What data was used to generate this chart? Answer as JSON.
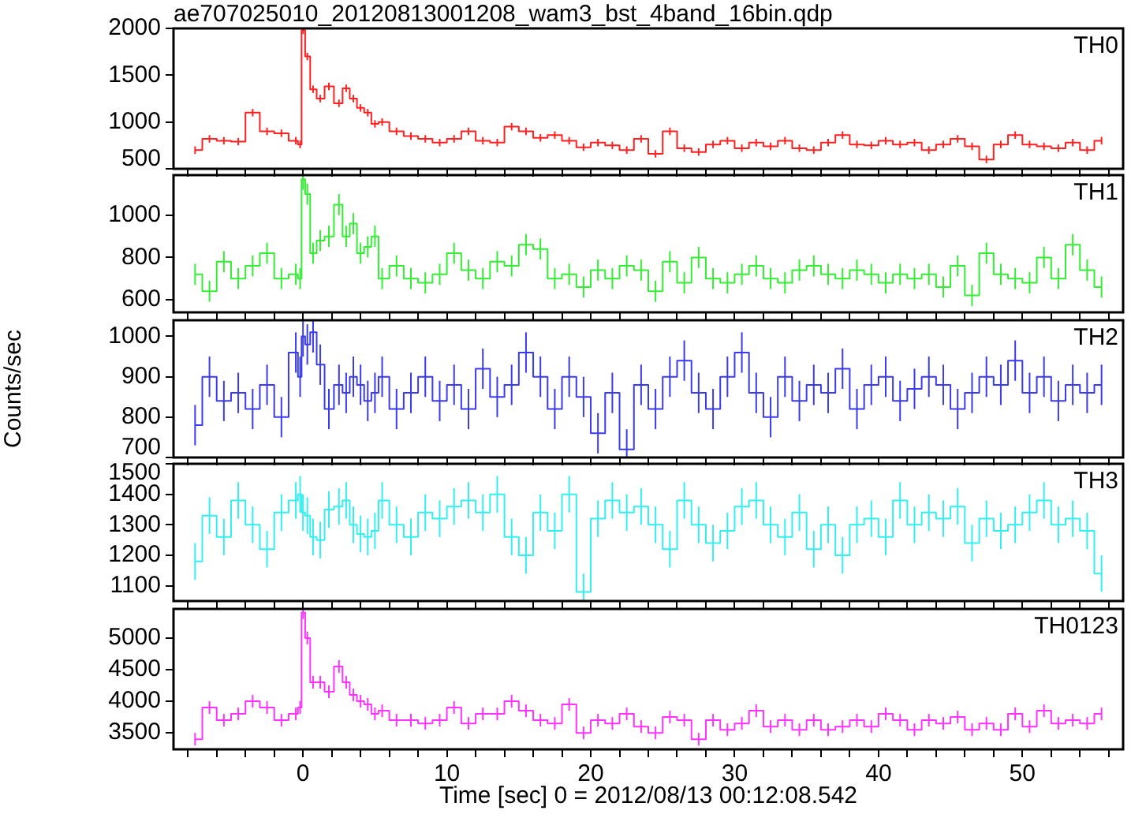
{
  "chart_data": [
    {
      "type": "step",
      "title": "ae707025010_20120813001208_wam3_bst_4band_16bin.qdp",
      "x": [
        -7.5,
        -6.5,
        -5.5,
        -4.5,
        -3.5,
        -2.5,
        -1.5,
        -0.5,
        -0.2,
        0,
        0.3,
        0.7,
        1.2,
        1.8,
        2.5,
        3,
        3.5,
        4,
        4.5,
        5,
        5.5,
        6.5,
        7.5,
        8.5,
        9.5,
        10.5,
        11.5,
        12.5,
        13.5,
        14.5,
        15.5,
        16.5,
        17.5,
        18.5,
        19.5,
        20.5,
        21.5,
        22.5,
        23.5,
        24.5,
        25.5,
        26.5,
        27.5,
        28.5,
        29.5,
        30.5,
        31.5,
        32.5,
        33.5,
        34.5,
        35.5,
        36.5,
        37.5,
        38.5,
        39.5,
        40.5,
        41.5,
        42.5,
        43.5,
        44.5,
        45.5,
        46.5,
        47.5,
        48.5,
        49.5,
        50.5,
        51.5,
        52.5,
        53.5,
        54.5,
        55.5
      ],
      "xlim": [
        -9,
        57
      ],
      "xticks": [
        {
          "value": -8,
          "label": null
        },
        {
          "value": -6,
          "label": null
        },
        {
          "value": -4,
          "label": null
        },
        {
          "value": -2,
          "label": null
        },
        0,
        {
          "value": 2,
          "label": null
        },
        {
          "value": 4,
          "label": null
        },
        {
          "value": 6,
          "label": null
        },
        {
          "value": 8,
          "label": null
        },
        10,
        {
          "value": 12,
          "label": null
        },
        {
          "value": 14,
          "label": null
        },
        {
          "value": 16,
          "label": null
        },
        {
          "value": 18,
          "label": null
        },
        20,
        {
          "value": 22,
          "label": null
        },
        {
          "value": 24,
          "label": null
        },
        {
          "value": 26,
          "label": null
        },
        {
          "value": 28,
          "label": null
        },
        30,
        {
          "value": 32,
          "label": null
        },
        {
          "value": 34,
          "label": null
        },
        {
          "value": 36,
          "label": null
        },
        {
          "value": 38,
          "label": null
        },
        40,
        {
          "value": 42,
          "label": null
        },
        {
          "value": 44,
          "label": null
        },
        {
          "value": 46,
          "label": null
        },
        {
          "value": 48,
          "label": null
        },
        50,
        {
          "value": 52,
          "label": null
        },
        {
          "value": 54,
          "label": null
        },
        {
          "value": 56,
          "label": null
        }
      ],
      "ylim": [
        500,
        2000
      ],
      "yticks": [
        500,
        1000,
        1500,
        2000
      ],
      "tick_labels": "y",
      "series": [
        {
          "name": "TH0",
          "color": "#ff2020",
          "values": [
            700,
            820,
            800,
            790,
            1100,
            900,
            880,
            800,
            760,
            1980,
            1700,
            1350,
            1250,
            1380,
            1200,
            1360,
            1250,
            1150,
            1100,
            980,
            1000,
            900,
            850,
            820,
            780,
            820,
            900,
            800,
            780,
            950,
            900,
            830,
            860,
            800,
            730,
            780,
            750,
            700,
            820,
            660,
            900,
            720,
            680,
            760,
            800,
            720,
            780,
            740,
            800,
            720,
            700,
            780,
            860,
            760,
            750,
            800,
            760,
            780,
            700,
            760,
            820,
            740,
            600,
            760,
            860,
            760,
            740,
            720,
            780,
            700,
            800
          ],
          "errors": [
            40,
            40,
            40,
            40,
            40,
            40,
            40,
            40,
            40,
            40,
            40,
            40,
            40,
            40,
            40,
            40,
            40,
            40,
            40,
            40,
            40,
            40,
            40,
            40,
            40,
            40,
            40,
            40,
            40,
            40,
            40,
            40,
            40,
            40,
            40,
            40,
            40,
            40,
            40,
            40,
            40,
            40,
            40,
            40,
            40,
            40,
            40,
            40,
            40,
            40,
            40,
            40,
            40,
            40,
            40,
            40,
            40,
            40,
            40,
            40,
            40,
            40,
            40,
            40,
            40,
            40,
            40,
            40,
            40,
            40,
            40
          ]
        }
      ]
    },
    {
      "type": "step",
      "x": [
        -7.5,
        -6.5,
        -5.5,
        -4.5,
        -3.5,
        -2.5,
        -1.5,
        -0.5,
        -0.2,
        0,
        0.3,
        0.7,
        1.2,
        1.8,
        2.5,
        3,
        3.5,
        4,
        4.5,
        5,
        5.5,
        6.5,
        7.5,
        8.5,
        9.5,
        10.5,
        11.5,
        12.5,
        13.5,
        14.5,
        15.5,
        16.5,
        17.5,
        18.5,
        19.5,
        20.5,
        21.5,
        22.5,
        23.5,
        24.5,
        25.5,
        26.5,
        27.5,
        28.5,
        29.5,
        30.5,
        31.5,
        32.5,
        33.5,
        34.5,
        35.5,
        36.5,
        37.5,
        38.5,
        39.5,
        40.5,
        41.5,
        42.5,
        43.5,
        44.5,
        45.5,
        46.5,
        47.5,
        48.5,
        49.5,
        50.5,
        51.5,
        52.5,
        53.5,
        54.5,
        55.5
      ],
      "xlim": [
        -9,
        57
      ],
      "xticks": [
        {
          "value": -8,
          "label": null
        },
        {
          "value": -6,
          "label": null
        },
        {
          "value": -4,
          "label": null
        },
        {
          "value": -2,
          "label": null
        },
        0,
        {
          "value": 2,
          "label": null
        },
        {
          "value": 4,
          "label": null
        },
        {
          "value": 6,
          "label": null
        },
        {
          "value": 8,
          "label": null
        },
        10,
        {
          "value": 12,
          "label": null
        },
        {
          "value": 14,
          "label": null
        },
        {
          "value": 16,
          "label": null
        },
        {
          "value": 18,
          "label": null
        },
        20,
        {
          "value": 22,
          "label": null
        },
        {
          "value": 24,
          "label": null
        },
        {
          "value": 26,
          "label": null
        },
        {
          "value": 28,
          "label": null
        },
        30,
        {
          "value": 32,
          "label": null
        },
        {
          "value": 34,
          "label": null
        },
        {
          "value": 36,
          "label": null
        },
        {
          "value": 38,
          "label": null
        },
        40,
        {
          "value": 42,
          "label": null
        },
        {
          "value": 44,
          "label": null
        },
        {
          "value": 46,
          "label": null
        },
        {
          "value": 48,
          "label": null
        },
        50,
        {
          "value": 52,
          "label": null
        },
        {
          "value": 54,
          "label": null
        },
        {
          "value": 56,
          "label": null
        }
      ],
      "ylim": [
        540,
        1190
      ],
      "yticks": [
        600,
        800,
        1000
      ],
      "tick_labels": "y",
      "series": [
        {
          "name": "TH1",
          "color": "#33ee33",
          "values": [
            720,
            640,
            780,
            700,
            760,
            820,
            700,
            720,
            700,
            1170,
            1100,
            820,
            880,
            900,
            1050,
            900,
            960,
            820,
            850,
            900,
            700,
            760,
            700,
            680,
            720,
            820,
            740,
            700,
            780,
            760,
            860,
            840,
            700,
            720,
            660,
            740,
            700,
            760,
            740,
            640,
            780,
            680,
            800,
            700,
            680,
            720,
            760,
            700,
            680,
            740,
            760,
            720,
            700,
            740,
            720,
            680,
            720,
            700,
            720,
            660,
            760,
            620,
            820,
            720,
            700,
            680,
            800,
            700,
            860,
            740,
            660
          ],
          "errors": [
            50,
            50,
            50,
            50,
            50,
            50,
            50,
            50,
            50,
            50,
            50,
            50,
            50,
            50,
            50,
            50,
            50,
            50,
            50,
            50,
            50,
            50,
            50,
            50,
            50,
            50,
            50,
            50,
            50,
            50,
            50,
            50,
            50,
            50,
            50,
            50,
            50,
            50,
            50,
            50,
            50,
            50,
            50,
            50,
            50,
            50,
            50,
            50,
            50,
            50,
            50,
            50,
            50,
            50,
            50,
            50,
            50,
            50,
            50,
            50,
            50,
            50,
            50,
            50,
            50,
            50,
            50,
            50,
            50,
            50,
            50
          ]
        }
      ]
    },
    {
      "type": "step",
      "ylabel": "Counts/sec",
      "x": [
        -7.5,
        -6.5,
        -5.5,
        -4.5,
        -3.5,
        -2.5,
        -1.5,
        -0.5,
        -0.2,
        0,
        0.3,
        0.7,
        1.2,
        1.8,
        2.5,
        3,
        3.5,
        4,
        4.5,
        5,
        5.5,
        6.5,
        7.5,
        8.5,
        9.5,
        10.5,
        11.5,
        12.5,
        13.5,
        14.5,
        15.5,
        16.5,
        17.5,
        18.5,
        19.5,
        20.5,
        21.5,
        22.5,
        23.5,
        24.5,
        25.5,
        26.5,
        27.5,
        28.5,
        29.5,
        30.5,
        31.5,
        32.5,
        33.5,
        34.5,
        35.5,
        36.5,
        37.5,
        38.5,
        39.5,
        40.5,
        41.5,
        42.5,
        43.5,
        44.5,
        45.5,
        46.5,
        47.5,
        48.5,
        49.5,
        50.5,
        51.5,
        52.5,
        53.5,
        54.5,
        55.5
      ],
      "xlim": [
        -9,
        57
      ],
      "xticks": [
        {
          "value": -8,
          "label": null
        },
        {
          "value": -6,
          "label": null
        },
        {
          "value": -4,
          "label": null
        },
        {
          "value": -2,
          "label": null
        },
        0,
        {
          "value": 2,
          "label": null
        },
        {
          "value": 4,
          "label": null
        },
        {
          "value": 6,
          "label": null
        },
        {
          "value": 8,
          "label": null
        },
        10,
        {
          "value": 12,
          "label": null
        },
        {
          "value": 14,
          "label": null
        },
        {
          "value": 16,
          "label": null
        },
        {
          "value": 18,
          "label": null
        },
        20,
        {
          "value": 22,
          "label": null
        },
        {
          "value": 24,
          "label": null
        },
        {
          "value": 26,
          "label": null
        },
        {
          "value": 28,
          "label": null
        },
        30,
        {
          "value": 32,
          "label": null
        },
        {
          "value": 34,
          "label": null
        },
        {
          "value": 36,
          "label": null
        },
        {
          "value": 38,
          "label": null
        },
        40,
        {
          "value": 42,
          "label": null
        },
        {
          "value": 44,
          "label": null
        },
        {
          "value": 46,
          "label": null
        },
        {
          "value": 48,
          "label": null
        },
        50,
        {
          "value": 52,
          "label": null
        },
        {
          "value": 54,
          "label": null
        },
        {
          "value": 56,
          "label": null
        }
      ],
      "ylim": [
        700,
        1040
      ],
      "yticks": [
        700,
        800,
        900,
        1000
      ],
      "tick_labels": "y",
      "series": [
        {
          "name": "TH2",
          "color": "#3a3aee",
          "values": [
            780,
            900,
            840,
            860,
            820,
            880,
            800,
            960,
            900,
            1000,
            980,
            1010,
            930,
            820,
            880,
            860,
            900,
            880,
            840,
            860,
            900,
            820,
            860,
            900,
            840,
            880,
            820,
            920,
            850,
            880,
            960,
            900,
            820,
            900,
            850,
            760,
            860,
            720,
            880,
            820,
            900,
            940,
            860,
            820,
            900,
            960,
            860,
            800,
            900,
            840,
            880,
            860,
            920,
            820,
            880,
            900,
            840,
            870,
            900,
            880,
            820,
            860,
            900,
            880,
            940,
            860,
            900,
            840,
            880,
            860,
            880
          ],
          "errors": [
            50,
            50,
            50,
            50,
            50,
            50,
            50,
            50,
            50,
            50,
            50,
            50,
            50,
            50,
            50,
            50,
            50,
            50,
            50,
            50,
            50,
            50,
            50,
            50,
            50,
            50,
            50,
            50,
            50,
            50,
            50,
            50,
            50,
            50,
            50,
            50,
            50,
            50,
            50,
            50,
            50,
            50,
            50,
            50,
            50,
            50,
            50,
            50,
            50,
            50,
            50,
            50,
            50,
            50,
            50,
            50,
            50,
            50,
            50,
            50,
            50,
            50,
            50,
            50,
            50,
            50,
            50,
            50,
            50,
            50,
            50
          ]
        }
      ]
    },
    {
      "type": "step",
      "x": [
        -7.5,
        -6.5,
        -5.5,
        -4.5,
        -3.5,
        -2.5,
        -1.5,
        -0.5,
        -0.2,
        0,
        0.3,
        0.7,
        1.2,
        1.8,
        2.5,
        3,
        3.5,
        4,
        4.5,
        5,
        5.5,
        6.5,
        7.5,
        8.5,
        9.5,
        10.5,
        11.5,
        12.5,
        13.5,
        14.5,
        15.5,
        16.5,
        17.5,
        18.5,
        19.5,
        20.5,
        21.5,
        22.5,
        23.5,
        24.5,
        25.5,
        26.5,
        27.5,
        28.5,
        29.5,
        30.5,
        31.5,
        32.5,
        33.5,
        34.5,
        35.5,
        36.5,
        37.5,
        38.5,
        39.5,
        40.5,
        41.5,
        42.5,
        43.5,
        44.5,
        45.5,
        46.5,
        47.5,
        48.5,
        49.5,
        50.5,
        51.5,
        52.5,
        53.5,
        54.5,
        55.5
      ],
      "xlim": [
        -9,
        57
      ],
      "xticks": [
        {
          "value": -8,
          "label": null
        },
        {
          "value": -6,
          "label": null
        },
        {
          "value": -4,
          "label": null
        },
        {
          "value": -2,
          "label": null
        },
        0,
        {
          "value": 2,
          "label": null
        },
        {
          "value": 4,
          "label": null
        },
        {
          "value": 6,
          "label": null
        },
        {
          "value": 8,
          "label": null
        },
        10,
        {
          "value": 12,
          "label": null
        },
        {
          "value": 14,
          "label": null
        },
        {
          "value": 16,
          "label": null
        },
        {
          "value": 18,
          "label": null
        },
        20,
        {
          "value": 22,
          "label": null
        },
        {
          "value": 24,
          "label": null
        },
        {
          "value": 26,
          "label": null
        },
        {
          "value": 28,
          "label": null
        },
        30,
        {
          "value": 32,
          "label": null
        },
        {
          "value": 34,
          "label": null
        },
        {
          "value": 36,
          "label": null
        },
        {
          "value": 38,
          "label": null
        },
        40,
        {
          "value": 42,
          "label": null
        },
        {
          "value": 44,
          "label": null
        },
        {
          "value": 46,
          "label": null
        },
        {
          "value": 48,
          "label": null
        },
        50,
        {
          "value": 52,
          "label": null
        },
        {
          "value": 54,
          "label": null
        },
        {
          "value": 56,
          "label": null
        }
      ],
      "ylim": [
        1050,
        1500
      ],
      "yticks": [
        1100,
        1200,
        1300,
        1400,
        1500
      ],
      "tick_labels": "y",
      "series": [
        {
          "name": "TH3",
          "color": "#33f0f0",
          "values": [
            1180,
            1330,
            1260,
            1380,
            1300,
            1220,
            1340,
            1380,
            1400,
            1340,
            1330,
            1260,
            1250,
            1350,
            1360,
            1380,
            1300,
            1270,
            1260,
            1280,
            1380,
            1300,
            1260,
            1340,
            1320,
            1360,
            1380,
            1340,
            1400,
            1260,
            1200,
            1340,
            1280,
            1400,
            1080,
            1320,
            1380,
            1340,
            1360,
            1300,
            1220,
            1380,
            1300,
            1240,
            1280,
            1360,
            1380,
            1300,
            1260,
            1340,
            1220,
            1300,
            1200,
            1300,
            1320,
            1260,
            1380,
            1300,
            1340,
            1320,
            1360,
            1240,
            1320,
            1280,
            1300,
            1340,
            1380,
            1300,
            1320,
            1280,
            1140
          ],
          "errors": [
            60,
            60,
            60,
            60,
            60,
            60,
            60,
            60,
            60,
            60,
            60,
            60,
            60,
            60,
            60,
            60,
            60,
            60,
            60,
            60,
            60,
            60,
            60,
            60,
            60,
            60,
            60,
            60,
            60,
            60,
            60,
            60,
            60,
            60,
            60,
            60,
            60,
            60,
            60,
            60,
            60,
            60,
            60,
            60,
            60,
            60,
            60,
            60,
            60,
            60,
            60,
            60,
            60,
            60,
            60,
            60,
            60,
            60,
            60,
            60,
            60,
            60,
            60,
            60,
            60,
            60,
            60,
            60,
            60,
            60,
            60
          ]
        }
      ]
    },
    {
      "type": "step",
      "xlabel": "Time [sec] 0 = 2012/08/13 00:12:08.542",
      "x": [
        -7.5,
        -6.5,
        -5.5,
        -4.5,
        -3.5,
        -2.5,
        -1.5,
        -0.5,
        -0.2,
        0,
        0.3,
        0.7,
        1.2,
        1.8,
        2.5,
        3,
        3.5,
        4,
        4.5,
        5,
        5.5,
        6.5,
        7.5,
        8.5,
        9.5,
        10.5,
        11.5,
        12.5,
        13.5,
        14.5,
        15.5,
        16.5,
        17.5,
        18.5,
        19.5,
        20.5,
        21.5,
        22.5,
        23.5,
        24.5,
        25.5,
        26.5,
        27.5,
        28.5,
        29.5,
        30.5,
        31.5,
        32.5,
        33.5,
        34.5,
        35.5,
        36.5,
        37.5,
        38.5,
        39.5,
        40.5,
        41.5,
        42.5,
        43.5,
        44.5,
        45.5,
        46.5,
        47.5,
        48.5,
        49.5,
        50.5,
        51.5,
        52.5,
        53.5,
        54.5,
        55.5
      ],
      "xlim": [
        -9,
        57
      ],
      "xticks": [
        {
          "value": -8,
          "label": null
        },
        {
          "value": -6,
          "label": null
        },
        {
          "value": -4,
          "label": null
        },
        {
          "value": -2,
          "label": null
        },
        0,
        {
          "value": 2,
          "label": null
        },
        {
          "value": 4,
          "label": null
        },
        {
          "value": 6,
          "label": null
        },
        {
          "value": 8,
          "label": null
        },
        10,
        {
          "value": 12,
          "label": null
        },
        {
          "value": 14,
          "label": null
        },
        {
          "value": 16,
          "label": null
        },
        {
          "value": 18,
          "label": null
        },
        20,
        {
          "value": 22,
          "label": null
        },
        {
          "value": 24,
          "label": null
        },
        {
          "value": 26,
          "label": null
        },
        {
          "value": 28,
          "label": null
        },
        30,
        {
          "value": 32,
          "label": null
        },
        {
          "value": 34,
          "label": null
        },
        {
          "value": 36,
          "label": null
        },
        {
          "value": 38,
          "label": null
        },
        40,
        {
          "value": 42,
          "label": null
        },
        {
          "value": 44,
          "label": null
        },
        {
          "value": 46,
          "label": null
        },
        {
          "value": 48,
          "label": null
        },
        50,
        {
          "value": 52,
          "label": null
        },
        {
          "value": 54,
          "label": null
        },
        {
          "value": 56,
          "label": null
        }
      ],
      "ylim": [
        3240,
        5460
      ],
      "yticks": [
        3500,
        4000,
        4500,
        5000
      ],
      "series": [
        {
          "name": "TH0123",
          "color": "#ff33ff",
          "values": [
            3400,
            3900,
            3700,
            3800,
            4000,
            3900,
            3700,
            3800,
            3900,
            5400,
            5000,
            4300,
            4300,
            4150,
            4550,
            4300,
            4100,
            4000,
            3950,
            3800,
            3850,
            3700,
            3700,
            3650,
            3700,
            3900,
            3650,
            3800,
            3800,
            4000,
            3850,
            3700,
            3650,
            3950,
            3500,
            3700,
            3650,
            3800,
            3600,
            3500,
            3750,
            3700,
            3400,
            3700,
            3550,
            3650,
            3850,
            3600,
            3700,
            3550,
            3700,
            3550,
            3600,
            3700,
            3600,
            3800,
            3700,
            3550,
            3700,
            3650,
            3750,
            3550,
            3650,
            3550,
            3800,
            3600,
            3850,
            3650,
            3700,
            3650,
            3800
          ],
          "errors": [
            100,
            100,
            100,
            100,
            100,
            100,
            100,
            100,
            100,
            100,
            100,
            100,
            100,
            100,
            100,
            100,
            100,
            100,
            100,
            100,
            100,
            100,
            100,
            100,
            100,
            100,
            100,
            100,
            100,
            100,
            100,
            100,
            100,
            100,
            100,
            100,
            100,
            100,
            100,
            100,
            100,
            100,
            100,
            100,
            100,
            100,
            100,
            100,
            100,
            100,
            100,
            100,
            100,
            100,
            100,
            100,
            100,
            100,
            100,
            100,
            100,
            100,
            100,
            100,
            100,
            100,
            100,
            100,
            100,
            100,
            100
          ]
        }
      ]
    }
  ]
}
